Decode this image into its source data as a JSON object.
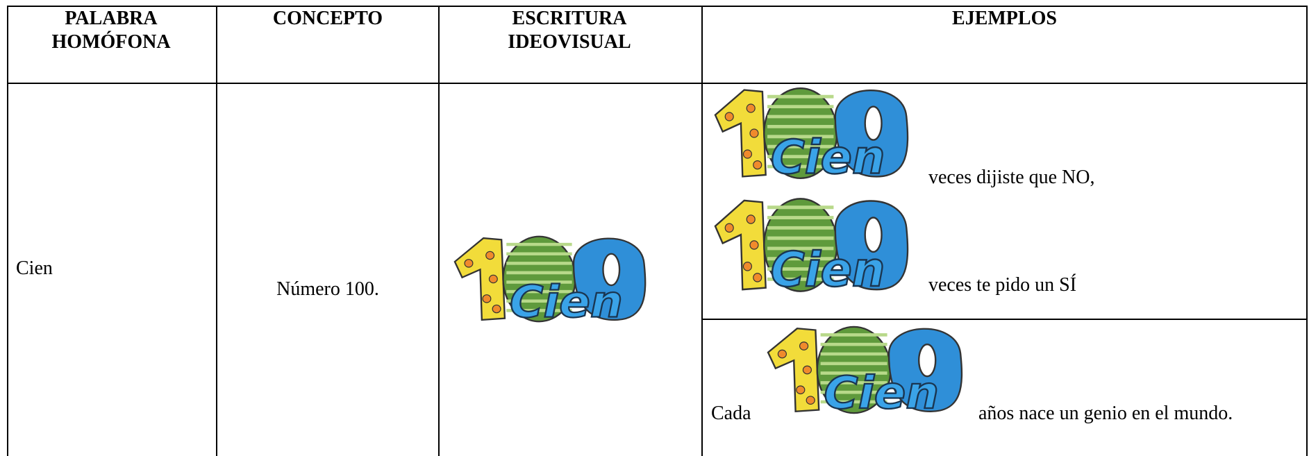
{
  "table": {
    "headers": [
      "PALABRA HOMÓFONA",
      "CONCEPTO",
      "ESCRITURA IDEOVISUAL",
      "EJEMPLOS"
    ],
    "rows": [
      {
        "word": "Cien",
        "concept": "Número 100.",
        "illustration_word": "Cien",
        "examples": [
          {
            "lines": [
              "veces dijiste que NO,",
              "veces te pido un SÍ"
            ]
          },
          {
            "before": "Cada",
            "after": "años nace un genio en el mundo."
          }
        ]
      }
    ]
  }
}
